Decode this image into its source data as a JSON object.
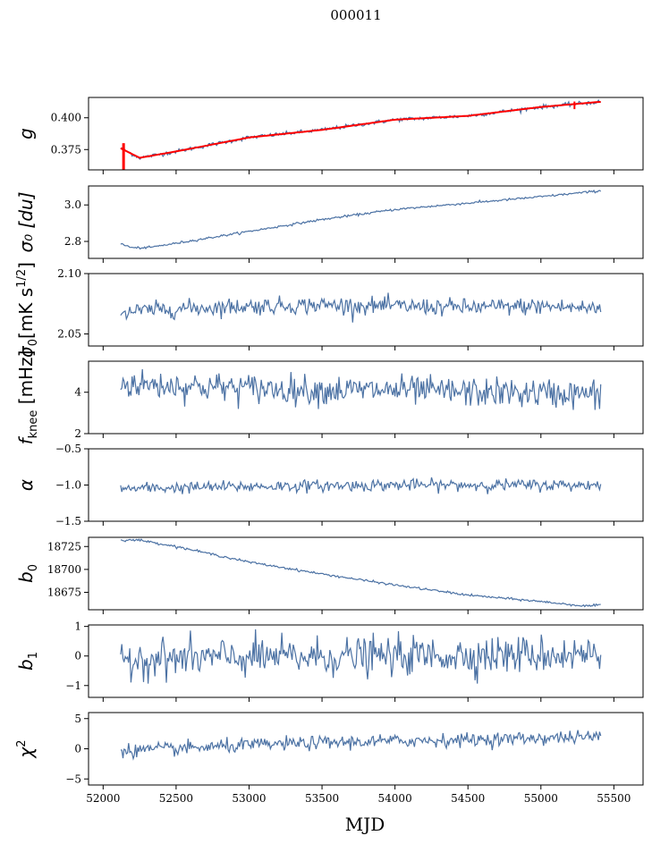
{
  "figure": {
    "suptitle": "000011",
    "xlabel": "MJD"
  },
  "chart_data": {
    "type": "line",
    "x_range": [
      52120,
      55410
    ],
    "xlim": [
      51900,
      55700
    ],
    "xticks": [
      52000,
      52500,
      53000,
      53500,
      54000,
      54500,
      55000,
      55500
    ],
    "series_color": "#4c72a4",
    "fit_color": "#ff0000",
    "panels": [
      {
        "id": "g",
        "ylabel": "g",
        "ylim": [
          0.359,
          0.416
        ],
        "yticks": [
          0.375,
          0.4
        ],
        "ytick_labels": [
          "0.375",
          "0.400"
        ],
        "curve": [
          [
            52120,
            0.376
          ],
          [
            52250,
            0.3685
          ],
          [
            52500,
            0.3735
          ],
          [
            53000,
            0.3845
          ],
          [
            53500,
            0.3905
          ],
          [
            54000,
            0.3985
          ],
          [
            54500,
            0.4015
          ],
          [
            55000,
            0.4085
          ],
          [
            55400,
            0.4125
          ]
        ],
        "noise": 0.0008,
        "fit": true
      },
      {
        "id": "sigma0_du",
        "ylabel": "σ₀ [du]",
        "ylim": [
          2.707,
          3.104
        ],
        "yticks": [
          2.8,
          3.0
        ],
        "ytick_labels": [
          "2.8",
          "3.0"
        ],
        "curve": [
          [
            52130,
            2.785
          ],
          [
            52200,
            2.765
          ],
          [
            52300,
            2.765
          ],
          [
            52500,
            2.79
          ],
          [
            53000,
            2.855
          ],
          [
            53500,
            2.92
          ],
          [
            54000,
            2.975
          ],
          [
            54500,
            3.01
          ],
          [
            55000,
            3.045
          ],
          [
            55400,
            3.077
          ]
        ],
        "noise": 0.003
      },
      {
        "id": "sigma0_mK",
        "ylabel": "σ₀[mK s^1/2]",
        "ylabel_main": "σ",
        "ylabel_sub": "0",
        "ylabel_rest": "[mK s",
        "ylabel_sup": "1/2",
        "ylabel_close": "]",
        "ylim": [
          2.04,
          2.1
        ],
        "yticks": [
          2.05,
          2.1
        ],
        "ytick_labels": [
          "2.05",
          "2.10"
        ],
        "curve": [
          [
            52130,
            2.068
          ],
          [
            52500,
            2.071
          ],
          [
            53000,
            2.073
          ],
          [
            53500,
            2.074
          ],
          [
            54000,
            2.073
          ],
          [
            54500,
            2.072
          ],
          [
            55000,
            2.073
          ],
          [
            55400,
            2.071
          ]
        ],
        "noise": 0.0035
      },
      {
        "id": "fknee",
        "ylabel": "f_knee [mHz]",
        "ylabel_main": "f",
        "ylabel_sub": "knee",
        "ylabel_rest": " [mHz]",
        "ylim": [
          2,
          5.5
        ],
        "yticks": [
          2,
          4
        ],
        "ytick_labels": [
          "2",
          "4"
        ],
        "curve": [
          [
            52130,
            4.4
          ],
          [
            52600,
            4.3
          ],
          [
            53000,
            4.2
          ],
          [
            53500,
            4.1
          ],
          [
            54000,
            4.1
          ],
          [
            54500,
            4.0
          ],
          [
            55000,
            3.95
          ],
          [
            55400,
            3.9
          ]
        ],
        "noise": 0.35
      },
      {
        "id": "alpha",
        "ylabel": "α",
        "ylim": [
          -1.5,
          -0.5
        ],
        "yticks": [
          -1.5,
          -1.0,
          -0.5
        ],
        "ytick_labels": [
          "−1.5",
          "−1.0",
          "−0.5"
        ],
        "curve": [
          [
            52130,
            -1.05
          ],
          [
            53000,
            -1.02
          ],
          [
            54000,
            -1.0
          ],
          [
            55000,
            -1.0
          ],
          [
            55400,
            -1.0
          ]
        ],
        "noise": 0.04
      },
      {
        "id": "b0",
        "ylabel": "b₀",
        "ylabel_main": "b",
        "ylabel_sub": "0",
        "ylim": [
          18656,
          18735
        ],
        "yticks": [
          18675,
          18700,
          18725
        ],
        "ytick_labels": [
          "18675",
          "18700",
          "18725"
        ],
        "curve": [
          [
            52130,
            18732
          ],
          [
            52250,
            18732
          ],
          [
            52500,
            18725
          ],
          [
            53000,
            18708
          ],
          [
            53500,
            18695
          ],
          [
            54000,
            18683
          ],
          [
            54500,
            18672
          ],
          [
            55000,
            18665
          ],
          [
            55300,
            18660
          ],
          [
            55400,
            18661
          ]
        ],
        "noise": 0.6
      },
      {
        "id": "b1",
        "ylabel": "b₁",
        "ylabel_main": "b",
        "ylabel_sub": "1",
        "ylim": [
          -1.4,
          1.05
        ],
        "yticks": [
          -1,
          0,
          1
        ],
        "ytick_labels": [
          "−1",
          "0",
          "1"
        ],
        "curve": [
          [
            52130,
            -0.1
          ],
          [
            53000,
            -0.05
          ],
          [
            54000,
            0.0
          ],
          [
            55000,
            0.05
          ],
          [
            55400,
            0.05
          ]
        ],
        "noise": 0.32
      },
      {
        "id": "chi2",
        "ylabel": "χ²",
        "ylabel_main": "χ",
        "ylabel_sup": "2",
        "ylim": [
          -6,
          6
        ],
        "yticks": [
          -5,
          0,
          5
        ],
        "ytick_labels": [
          "−5",
          "0",
          "5"
        ],
        "curve": [
          [
            52130,
            -0.3
          ],
          [
            52500,
            0.0
          ],
          [
            53000,
            0.6
          ],
          [
            53500,
            1.0
          ],
          [
            54000,
            1.3
          ],
          [
            54500,
            1.5
          ],
          [
            55000,
            1.8
          ],
          [
            55400,
            2.0
          ]
        ],
        "noise": 0.55
      }
    ]
  }
}
